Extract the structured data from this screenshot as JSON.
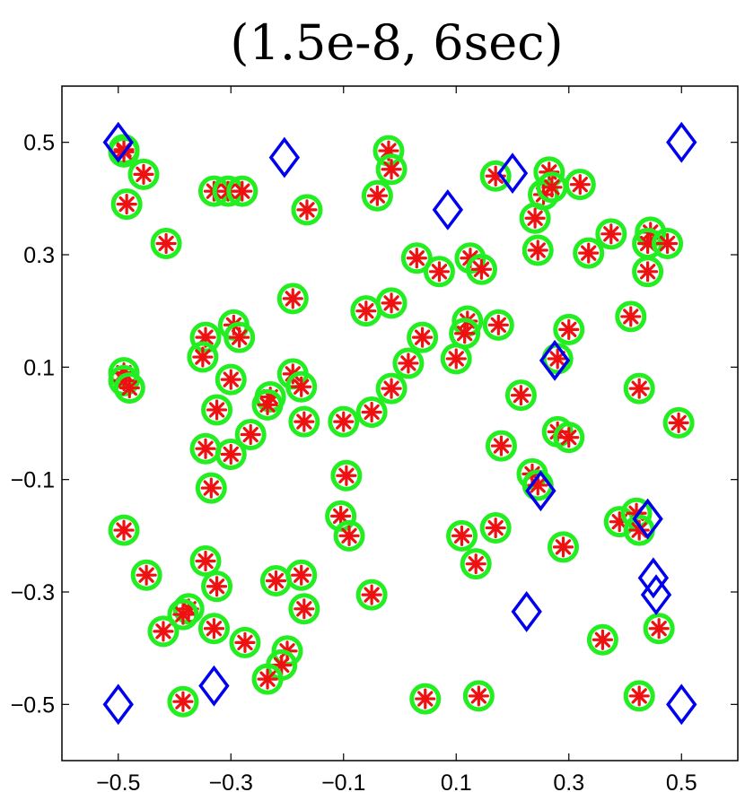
{
  "chart_data": {
    "type": "scatter",
    "title": "(1.5e-8, 6sec)",
    "xlabel": "",
    "ylabel": "",
    "xlim": [
      -0.6,
      0.6
    ],
    "ylim": [
      -0.6,
      0.6
    ],
    "xticks": [
      -0.5,
      -0.3,
      -0.1,
      0.1,
      0.3,
      0.5
    ],
    "yticks": [
      0.5,
      0.3,
      0.1,
      -0.1,
      -0.3,
      -0.5
    ],
    "xtick_labels": [
      "−0.5",
      "−0.3",
      "−0.1",
      "0.1",
      "0.3",
      "0.5"
    ],
    "ytick_labels": [
      "0.5",
      "0.3",
      "0.1",
      "−0.1",
      "−0.3",
      "−0.5"
    ],
    "grid": false,
    "colors": {
      "diamond": "#0000ee",
      "circle": "#22ee22",
      "star": "#ee1111"
    },
    "series": [
      {
        "name": "diamonds",
        "marker": "diamond",
        "points": [
          [
            -0.5,
            0.5
          ],
          [
            -0.205,
            0.473
          ],
          [
            0.085,
            0.38
          ],
          [
            0.2,
            0.445
          ],
          [
            0.5,
            0.5
          ],
          [
            0.275,
            0.112
          ],
          [
            0.25,
            -0.12
          ],
          [
            0.44,
            -0.17
          ],
          [
            0.45,
            -0.275
          ],
          [
            0.455,
            -0.305
          ],
          [
            0.225,
            -0.335
          ],
          [
            -0.5,
            -0.5
          ],
          [
            -0.33,
            -0.467
          ],
          [
            0.5,
            -0.5
          ]
        ]
      },
      {
        "name": "circles",
        "marker": "circle",
        "points": [
          [
            -0.49,
            0.487
          ],
          [
            -0.49,
            0.483
          ],
          [
            -0.455,
            0.443
          ],
          [
            -0.485,
            0.39
          ],
          [
            -0.415,
            0.32
          ],
          [
            -0.33,
            0.413
          ],
          [
            -0.305,
            0.413
          ],
          [
            -0.28,
            0.413
          ],
          [
            -0.165,
            0.38
          ],
          [
            -0.04,
            0.405
          ],
          [
            -0.02,
            0.485
          ],
          [
            -0.015,
            0.452
          ],
          [
            0.17,
            0.44
          ],
          [
            0.265,
            0.447
          ],
          [
            0.255,
            0.407
          ],
          [
            0.27,
            0.42
          ],
          [
            0.32,
            0.425
          ],
          [
            0.24,
            0.365
          ],
          [
            0.245,
            0.308
          ],
          [
            0.335,
            0.303
          ],
          [
            0.375,
            0.337
          ],
          [
            0.445,
            0.34
          ],
          [
            0.44,
            0.32
          ],
          [
            0.475,
            0.32
          ],
          [
            0.44,
            0.27
          ],
          [
            -0.19,
            0.222
          ],
          [
            -0.06,
            0.2
          ],
          [
            -0.015,
            0.214
          ],
          [
            0.03,
            0.294
          ],
          [
            0.07,
            0.27
          ],
          [
            0.125,
            0.294
          ],
          [
            0.145,
            0.274
          ],
          [
            0.12,
            0.182
          ],
          [
            0.115,
            0.16
          ],
          [
            0.175,
            0.175
          ],
          [
            0.1,
            0.115
          ],
          [
            0.04,
            0.153
          ],
          [
            0.015,
            0.107
          ],
          [
            -0.015,
            0.062
          ],
          [
            -0.05,
            0.02
          ],
          [
            -0.1,
            0.003
          ],
          [
            -0.345,
            0.153
          ],
          [
            -0.35,
            0.118
          ],
          [
            -0.295,
            0.175
          ],
          [
            -0.285,
            0.153
          ],
          [
            -0.49,
            0.09
          ],
          [
            -0.49,
            0.076
          ],
          [
            -0.48,
            0.063
          ],
          [
            -0.3,
            0.078
          ],
          [
            -0.23,
            0.047
          ],
          [
            -0.235,
            0.033
          ],
          [
            -0.19,
            0.088
          ],
          [
            -0.175,
            0.065
          ],
          [
            -0.17,
            0.003
          ],
          [
            -0.325,
            0.024
          ],
          [
            -0.345,
            -0.045
          ],
          [
            -0.3,
            -0.055
          ],
          [
            -0.265,
            -0.02
          ],
          [
            -0.335,
            -0.115
          ],
          [
            -0.49,
            -0.19
          ],
          [
            -0.095,
            -0.093
          ],
          [
            -0.105,
            -0.165
          ],
          [
            -0.09,
            -0.2
          ],
          [
            -0.05,
            -0.305
          ],
          [
            0.11,
            -0.2
          ],
          [
            0.135,
            -0.25
          ],
          [
            0.17,
            -0.186
          ],
          [
            0.18,
            -0.04
          ],
          [
            0.215,
            0.05
          ],
          [
            0.235,
            -0.09
          ],
          [
            0.245,
            -0.11
          ],
          [
            0.28,
            -0.015
          ],
          [
            0.3,
            -0.025
          ],
          [
            0.3,
            0.167
          ],
          [
            0.28,
            0.115
          ],
          [
            0.29,
            -0.22
          ],
          [
            0.41,
            0.19
          ],
          [
            0.425,
            0.062
          ],
          [
            0.495,
            0.001
          ],
          [
            0.39,
            -0.175
          ],
          [
            0.42,
            -0.16
          ],
          [
            0.425,
            -0.19
          ],
          [
            0.46,
            -0.365
          ],
          [
            0.36,
            -0.385
          ],
          [
            0.425,
            -0.485
          ],
          [
            0.14,
            -0.485
          ],
          [
            0.045,
            -0.49
          ],
          [
            -0.45,
            -0.27
          ],
          [
            -0.42,
            -0.37
          ],
          [
            -0.345,
            -0.245
          ],
          [
            -0.325,
            -0.29
          ],
          [
            -0.375,
            -0.33
          ],
          [
            -0.385,
            -0.34
          ],
          [
            -0.33,
            -0.365
          ],
          [
            -0.275,
            -0.39
          ],
          [
            -0.22,
            -0.28
          ],
          [
            -0.175,
            -0.27
          ],
          [
            -0.17,
            -0.33
          ],
          [
            -0.2,
            -0.405
          ],
          [
            -0.21,
            -0.43
          ],
          [
            -0.235,
            -0.455
          ],
          [
            -0.385,
            -0.495
          ]
        ]
      }
    ]
  }
}
